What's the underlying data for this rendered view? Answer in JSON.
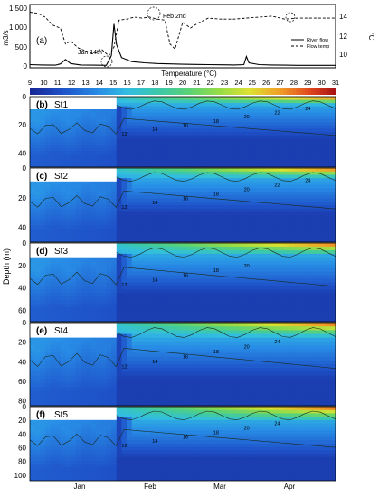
{
  "chart_data": [
    {
      "type": "line",
      "panel_label": "(a)",
      "ylabel_left": "m3/s",
      "ylabel_right": "°C",
      "yticks_left": [
        "1,500",
        "1,000",
        "500",
        "0"
      ],
      "yticks_right": [
        "14",
        "12",
        "10"
      ],
      "ylim_left": [
        0,
        1600
      ],
      "ylim_right": [
        9,
        15
      ],
      "x_range_days": [
        0,
        120
      ],
      "annotations": [
        {
          "label": "Jan 14th",
          "day": 14
        },
        {
          "label": "Feb 2nd",
          "day": 33
        }
      ],
      "legend_position": "right",
      "series": [
        {
          "name": "River flow",
          "axis": "left",
          "style": "solid",
          "x": [
            0,
            5,
            10,
            12,
            14,
            16,
            20,
            25,
            30,
            32,
            33,
            34,
            36,
            40,
            45,
            50,
            55,
            60,
            65,
            70,
            75,
            80,
            84,
            85,
            86,
            90,
            95,
            100,
            105,
            110,
            115,
            120
          ],
          "y": [
            60,
            50,
            45,
            80,
            200,
            90,
            50,
            45,
            40,
            300,
            1150,
            600,
            250,
            140,
            110,
            90,
            80,
            70,
            65,
            60,
            55,
            50,
            60,
            280,
            110,
            60,
            50,
            45,
            40,
            40,
            40,
            40
          ]
        },
        {
          "name": "Flow temp",
          "axis": "right",
          "style": "dashed",
          "x": [
            0,
            3,
            6,
            9,
            12,
            14,
            16,
            19,
            22,
            25,
            28,
            31,
            33,
            35,
            38,
            41,
            44,
            47,
            50,
            53,
            55,
            57,
            60,
            63,
            66,
            70,
            75,
            80,
            85,
            90,
            95,
            100,
            105,
            110,
            115,
            120
          ],
          "y": [
            14.5,
            14.4,
            14.0,
            13.2,
            12.9,
            11.3,
            11.6,
            10.9,
            10.6,
            10.3,
            10.8,
            10.1,
            11.0,
            13.7,
            13.8,
            14.0,
            13.9,
            14.0,
            13.8,
            13.7,
            11.3,
            10.8,
            13.5,
            12.9,
            13.4,
            13.9,
            13.8,
            13.8,
            13.9,
            14.0,
            14.1,
            13.8,
            13.9,
            13.9,
            13.9,
            13.9
          ]
        }
      ]
    },
    {
      "type": "heatmap",
      "colorbar_title": "Temperature (°C)",
      "colorbar_ticks": [
        "9",
        "10",
        "11",
        "12",
        "13",
        "14",
        "15",
        "16",
        "17",
        "18",
        "19",
        "20",
        "21",
        "22",
        "23",
        "24",
        "25",
        "26",
        "27",
        "28",
        "29",
        "30",
        "31"
      ],
      "colorbar_range": [
        9,
        31
      ],
      "ylabel": "Depth (m)",
      "xticks": [
        "Jan",
        "Feb",
        "Mar",
        "Apr"
      ],
      "panels": [
        {
          "label": "(b)",
          "station": "St1",
          "yticks": [
            "0",
            "20",
            "40"
          ],
          "max_depth": 50,
          "contour_labels": [
            "12",
            "14",
            "16",
            "18",
            "20",
            "22",
            "24"
          ]
        },
        {
          "label": "(c)",
          "station": "St2",
          "yticks": [
            "0",
            "20",
            "40"
          ],
          "max_depth": 50,
          "contour_labels": [
            "12",
            "14",
            "16",
            "18",
            "20",
            "22",
            "24"
          ]
        },
        {
          "label": "(d)",
          "station": "St3",
          "yticks": [
            "0",
            "20",
            "40",
            "60"
          ],
          "max_depth": 70,
          "contour_labels": [
            "12",
            "14",
            "16",
            "18",
            "20"
          ]
        },
        {
          "label": "(e)",
          "station": "St4",
          "yticks": [
            "0",
            "20",
            "40",
            "60",
            "80"
          ],
          "max_depth": 85,
          "contour_labels": [
            "12",
            "14",
            "16",
            "18",
            "20",
            "24"
          ]
        },
        {
          "label": "(f)",
          "station": "St5",
          "yticks": [
            "0",
            "20",
            "40",
            "60",
            "80",
            "100"
          ],
          "max_depth": 108,
          "contour_labels": [
            "12",
            "14",
            "16",
            "18",
            "20",
            "24"
          ]
        }
      ]
    }
  ]
}
